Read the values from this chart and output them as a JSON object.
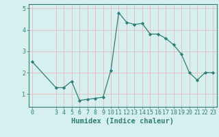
{
  "x": [
    0,
    3,
    4,
    5,
    6,
    7,
    8,
    9,
    10,
    11,
    12,
    13,
    14,
    15,
    16,
    17,
    18,
    19,
    20,
    21,
    22,
    23
  ],
  "y": [
    2.5,
    1.3,
    1.3,
    1.6,
    0.7,
    0.75,
    0.8,
    0.85,
    2.1,
    4.8,
    4.35,
    4.25,
    4.3,
    3.8,
    3.8,
    3.6,
    3.3,
    2.85,
    2.0,
    1.65,
    2.0,
    2.0
  ],
  "xlabel": "Humidex (Indice chaleur)",
  "xticks": [
    0,
    3,
    4,
    5,
    6,
    7,
    8,
    9,
    10,
    11,
    12,
    13,
    14,
    15,
    16,
    17,
    18,
    19,
    20,
    21,
    22,
    23
  ],
  "yticks": [
    1,
    2,
    3,
    4,
    5
  ],
  "ylim": [
    0.4,
    5.2
  ],
  "xlim": [
    -0.5,
    23.5
  ],
  "line_color": "#2d7d74",
  "marker_color": "#2d7d74",
  "bg_color": "#d6f0f0",
  "grid_color": "#e8b8b8",
  "xlabel_fontsize": 7.5,
  "tick_fontsize": 6.0
}
